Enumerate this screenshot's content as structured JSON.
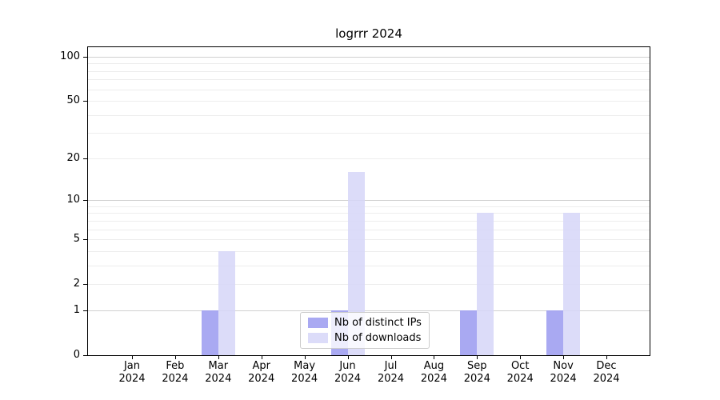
{
  "chart_data": {
    "type": "bar",
    "title": "logrrr 2024",
    "xlabel": "",
    "ylabel": "",
    "categories": [
      "Jan",
      "Feb",
      "Mar",
      "Apr",
      "May",
      "Jun",
      "Jul",
      "Aug",
      "Sep",
      "Oct",
      "Nov",
      "Dec"
    ],
    "category_year": "2024",
    "series": [
      {
        "name": "Nb of distinct IPs",
        "color": "#9d9df0",
        "alpha": 0.88,
        "values": [
          0,
          0,
          1,
          0,
          0,
          1,
          0,
          0,
          1,
          0,
          1,
          0
        ]
      },
      {
        "name": "Nb of downloads",
        "color": "#d6d6f8",
        "alpha": 0.85,
        "values": [
          0,
          0,
          4,
          0,
          0,
          16,
          0,
          0,
          8,
          0,
          8,
          0
        ]
      }
    ],
    "yscale": "log1p",
    "ylim": [
      0,
      116
    ],
    "yticks": [
      100,
      50,
      20,
      10,
      5,
      2,
      1,
      0
    ],
    "major_gridlines": [
      1,
      10,
      100
    ],
    "minor_gridlines": [
      2,
      3,
      4,
      5,
      6,
      7,
      8,
      9,
      20,
      30,
      40,
      50,
      60,
      70,
      80,
      90
    ],
    "grid": true,
    "legend_position": "lower center",
    "colors": {
      "major_grid": "#d0d0d0",
      "minor_grid": "#ededed",
      "axis": "#000000"
    }
  }
}
